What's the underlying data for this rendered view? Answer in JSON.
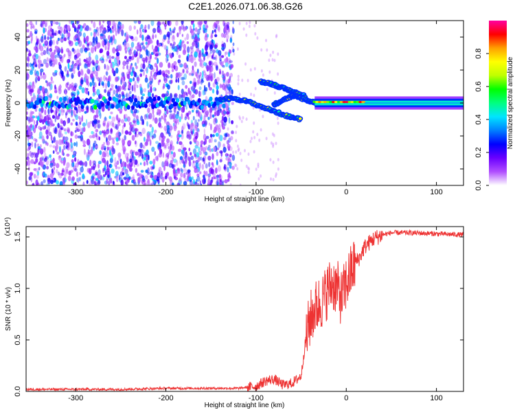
{
  "figure": {
    "title": "C2E1.2026.071.06.38.G26"
  },
  "chart_data": [
    {
      "type": "heatmap",
      "xlabel": "Height of straight line (km)",
      "ylabel": "Frequency (Hz)",
      "xlim": [
        -355,
        130
      ],
      "ylim": [
        -50,
        50
      ],
      "xticks": [
        -300,
        -200,
        -100,
        0,
        100
      ],
      "yticks": [
        -40,
        -20,
        0,
        20,
        40
      ],
      "grid": false,
      "colorbar": {
        "label": "Normalized spectral amplitude",
        "range": [
          0.0,
          1.0
        ],
        "ticks": [
          "0.0",
          "0.2",
          "0.4",
          "0.6",
          "0.8"
        ],
        "colors": [
          "#ffffff",
          "#b04dff",
          "#6a00ff",
          "#0000ff",
          "#0080ff",
          "#00e5ff",
          "#00ff80",
          "#00ff00",
          "#bfff00",
          "#ffff00",
          "#ffa000",
          "#ff0000",
          "#ff00a0"
        ]
      },
      "description_points": {
        "noise_region_end_km": -135,
        "carrier_band_hz": [
          -2,
          2
        ],
        "track_segments": [
          {
            "x": [
              -140,
              -125,
              -110,
              -95,
              -80,
              -65,
              -50
            ],
            "y": [
              2,
              3,
              1,
              -2,
              -5,
              -8,
              -10
            ]
          },
          {
            "x": [
              -95,
              -85,
              -75,
              -65,
              -55,
              -45
            ],
            "y": [
              13,
              12,
              10,
              8,
              6,
              4
            ]
          },
          {
            "x": [
              -80,
              -70,
              -60,
              -50,
              -40,
              -30
            ],
            "y": [
              -1,
              2,
              4,
              3,
              1,
              0
            ]
          }
        ],
        "strong_carrier_x": [
          -35,
          130
        ]
      }
    },
    {
      "type": "line",
      "xlabel": "Height of straight line (km)",
      "ylabel": "SNR (10 * v/v)",
      "y_multiplier": "(x10⁴)",
      "xlim": [
        -355,
        130
      ],
      "ylim": [
        0,
        1.6
      ],
      "xticks": [
        -300,
        -200,
        -100,
        0,
        100
      ],
      "yticks": [
        0.0,
        0.5,
        1.0,
        1.5
      ],
      "ytick_labels": [
        "0.0",
        "0.5",
        "1.0",
        "1.5"
      ],
      "grid": false,
      "series": [
        {
          "color": "#ee3333",
          "x": [
            -355,
            -300,
            -250,
            -200,
            -150,
            -120,
            -100,
            -90,
            -80,
            -70,
            -60,
            -50,
            -45,
            -40,
            -35,
            -30,
            -25,
            -20,
            -15,
            -10,
            -5,
            0,
            5,
            10,
            15,
            20,
            30,
            40,
            50,
            70,
            100,
            130
          ],
          "y": [
            0.02,
            0.02,
            0.02,
            0.03,
            0.03,
            0.03,
            0.05,
            0.1,
            0.12,
            0.06,
            0.08,
            0.15,
            0.5,
            0.7,
            0.8,
            0.85,
            0.9,
            1.0,
            1.05,
            1.0,
            0.9,
            1.05,
            1.15,
            1.25,
            1.3,
            1.4,
            1.48,
            1.52,
            1.54,
            1.54,
            1.53,
            1.52
          ]
        }
      ]
    }
  ]
}
